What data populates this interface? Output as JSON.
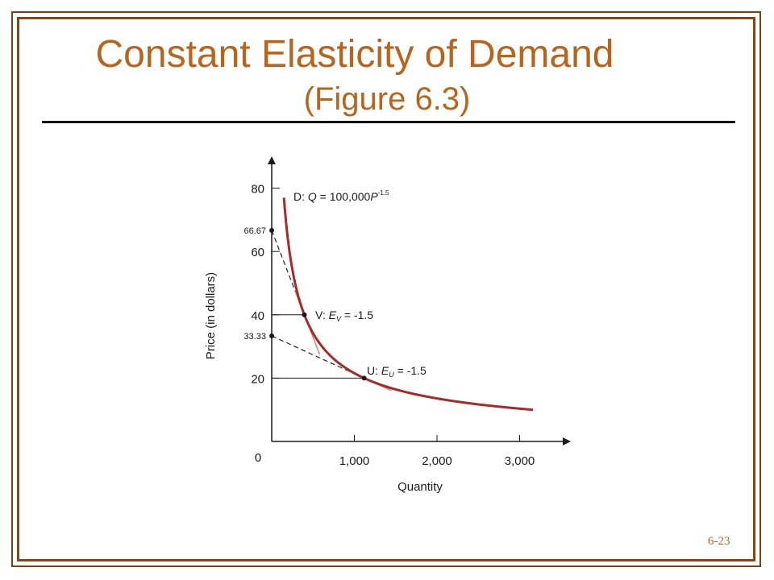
{
  "slide": {
    "title": "Constant Elasticity of Demand",
    "subtitle": "(Figure 6.3)",
    "slide_number": "6-23",
    "colors": {
      "title": "#b8641c",
      "frame": "#8b4513",
      "curve": "#a52a2a",
      "tangent": "#d98080"
    }
  },
  "chart_data": {
    "type": "line",
    "xlabel": "Quantity",
    "ylabel": "Price (in dollars)",
    "origin_label": "0",
    "xlim": [
      0,
      3500
    ],
    "ylim": [
      0,
      90
    ],
    "x_ticks": [
      {
        "value": 1000,
        "label": "1,000"
      },
      {
        "value": 2000,
        "label": "2,000"
      },
      {
        "value": 3000,
        "label": "3,000"
      }
    ],
    "y_ticks": [
      {
        "value": 20,
        "label": "20"
      },
      {
        "value": 40,
        "label": "40"
      },
      {
        "value": 60,
        "label": "60"
      },
      {
        "value": 80,
        "label": "80"
      }
    ],
    "extra_y_labels": [
      {
        "value": 66.67,
        "label": "66.67"
      },
      {
        "value": 33.33,
        "label": "33.33"
      }
    ],
    "demand_curve": {
      "label": "D:  Q = 100,000P",
      "exponent_label": "-1.5",
      "coefficient": 100000,
      "exponent": -1.5,
      "p_range": [
        10,
        77
      ]
    },
    "points": [
      {
        "id": "V",
        "label": "V:  E",
        "subscript": "V",
        "value_label": " = -1.5",
        "q": 395,
        "p": 40
      },
      {
        "id": "U",
        "label": "U:  E",
        "subscript": "U",
        "value_label": " = -1.5",
        "q": 1118,
        "p": 20
      }
    ],
    "tangents": [
      {
        "intercept": 66.67,
        "point": "V",
        "end_q": 580
      },
      {
        "intercept": 33.33,
        "point": "U",
        "end_q": 1450
      }
    ]
  }
}
